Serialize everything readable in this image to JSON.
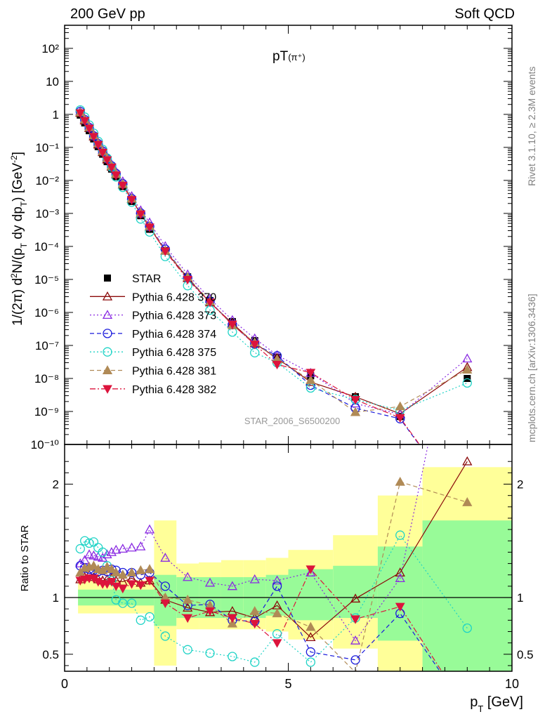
{
  "header": {
    "left": "200 GeV pp",
    "right": "Soft QCD"
  },
  "side_text": {
    "rivet": "Rivet 3.1.10, ≥ 2.3M events",
    "mcplots": "mcplots.cern.ch [arXiv:1306.3436]"
  },
  "main_plot": {
    "title_base": "pT",
    "title_sub": "(π⁺)",
    "watermark": "STAR_2006_S6500200",
    "ylabel": "1/(2π) d²N/(p_T dy dp_T) [GeV⁻²]",
    "ylim": [
      1e-10,
      500
    ],
    "yticks": [
      {
        "v": 1e-10,
        "l": "10⁻¹⁰"
      },
      {
        "v": 1e-09,
        "l": "10⁻⁹"
      },
      {
        "v": 1e-08,
        "l": "10⁻⁸"
      },
      {
        "v": 1e-07,
        "l": "10⁻⁷"
      },
      {
        "v": 1e-06,
        "l": "10⁻⁶"
      },
      {
        "v": 1e-05,
        "l": "10⁻⁵"
      },
      {
        "v": 0.0001,
        "l": "10⁻⁴"
      },
      {
        "v": 0.001,
        "l": "10⁻³"
      },
      {
        "v": 0.01,
        "l": "10⁻²"
      },
      {
        "v": 0.1,
        "l": "10⁻¹"
      },
      {
        "v": 1,
        "l": "1"
      },
      {
        "v": 10,
        "l": "10"
      },
      {
        "v": 100,
        "l": "10²"
      }
    ]
  },
  "ratio_plot": {
    "ylabel": "Ratio to STAR",
    "ylim": [
      0.35,
      2.35
    ],
    "yticks": [
      {
        "v": 0.5,
        "l": "0.5"
      },
      {
        "v": 1,
        "l": "1"
      },
      {
        "v": 2,
        "l": "2"
      }
    ]
  },
  "xaxis": {
    "label": "p_T [GeV]",
    "xlim": [
      0,
      10
    ],
    "ticks": [
      {
        "v": 0,
        "l": "0"
      },
      {
        "v": 5,
        "l": "5"
      },
      {
        "v": 10,
        "l": "10"
      }
    ]
  },
  "chart_data": {
    "type": "scatter",
    "x": [
      0.35,
      0.45,
      0.55,
      0.65,
      0.75,
      0.85,
      0.95,
      1.05,
      1.15,
      1.3,
      1.5,
      1.7,
      1.9,
      2.25,
      2.75,
      3.25,
      3.75,
      4.25,
      4.75,
      5.5,
      6.5,
      7.5,
      9.0
    ],
    "series": [
      {
        "name": "STAR",
        "color": "#000000",
        "marker": "square",
        "line": "none",
        "values": [
          0.95,
          0.55,
          0.32,
          0.18,
          0.105,
          0.062,
          0.037,
          0.022,
          0.013,
          0.0065,
          0.0023,
          0.00085,
          0.00033,
          7.5e-05,
          1.2e-05,
          2.3e-06,
          5.3e-07,
          1.4e-07,
          4.4e-08,
          1.2e-08,
          2.8e-09,
          7e-10,
          1e-08
        ]
      },
      {
        "name": "Pythia 6.428 370",
        "color": "#8b0a0a",
        "marker": "tri-up-open",
        "line": "solid",
        "ratio": [
          1.16,
          1.18,
          1.2,
          1.18,
          1.16,
          1.15,
          1.16,
          1.17,
          1.15,
          1.14,
          1.17,
          1.13,
          1.15,
          0.98,
          0.91,
          0.87,
          0.88,
          0.82,
          0.93,
          0.65,
          0.99,
          1.22,
          2.2
        ]
      },
      {
        "name": "Pythia 6.428 373",
        "color": "#8a2be2",
        "marker": "tri-up-open",
        "line": "dotted",
        "ratio": [
          1.3,
          1.33,
          1.38,
          1.37,
          1.36,
          1.35,
          1.38,
          1.4,
          1.42,
          1.43,
          1.44,
          1.45,
          1.6,
          1.35,
          1.18,
          1.13,
          1.1,
          1.16,
          1.15,
          1.22,
          0.62,
          1.17,
          4.0
        ]
      },
      {
        "name": "Pythia 6.428 374",
        "color": "#1a1adc",
        "marker": "circle-open",
        "line": "dashed",
        "ratio": [
          1.28,
          1.26,
          1.25,
          1.24,
          1.23,
          1.24,
          1.23,
          1.25,
          1.24,
          1.22,
          1.22,
          1.2,
          1.22,
          1.1,
          0.93,
          0.94,
          0.8,
          0.79,
          1.1,
          0.52,
          0.45,
          0.86,
          0.0
        ]
      },
      {
        "name": "Pythia 6.428 375",
        "color": "#1ed3c6",
        "marker": "circle-open",
        "line": "dotted",
        "ratio": [
          1.43,
          1.5,
          1.48,
          1.49,
          1.44,
          1.4,
          1.28,
          1.15,
          0.98,
          0.95,
          0.95,
          0.8,
          0.83,
          0.66,
          0.54,
          0.51,
          0.48,
          0.43,
          0.68,
          0.43,
          0.82,
          1.55,
          0.73
        ]
      },
      {
        "name": "Pythia 6.428 381",
        "color": "#b08a56",
        "marker": "tri-up-filled",
        "line": "dashed",
        "ratio": [
          1.22,
          1.26,
          1.27,
          1.28,
          1.25,
          1.24,
          1.27,
          1.25,
          1.22,
          1.2,
          1.22,
          1.24,
          1.25,
          1.0,
          0.98,
          0.93,
          0.77,
          0.88,
          0.86,
          0.74,
          0.34,
          2.02,
          1.84
        ]
      },
      {
        "name": "Pythia 6.428 382",
        "color": "#dc143c",
        "marker": "tri-down-filled",
        "line": "dashdot",
        "ratio": [
          1.15,
          1.16,
          1.17,
          1.17,
          1.14,
          1.12,
          1.12,
          1.14,
          1.1,
          1.08,
          1.12,
          1.11,
          1.15,
          0.95,
          0.82,
          0.88,
          0.82,
          0.77,
          0.6,
          1.25,
          0.81,
          0.92,
          0.0
        ]
      }
    ],
    "bands": {
      "edges": [
        0.3,
        2.0,
        2.5,
        3.0,
        3.5,
        4.0,
        4.5,
        5.0,
        6.0,
        7.0,
        8.0,
        10.0
      ],
      "green": [
        [
          0.93,
          1.07
        ],
        [
          0.75,
          1.2
        ],
        [
          0.82,
          1.18
        ],
        [
          0.82,
          1.18
        ],
        [
          0.82,
          1.18
        ],
        [
          0.82,
          1.18
        ],
        [
          0.84,
          1.2
        ],
        [
          0.8,
          1.25
        ],
        [
          0.82,
          1.28
        ],
        [
          0.62,
          1.45
        ],
        [
          0.35,
          1.68
        ]
      ],
      "yellow": [
        [
          0.86,
          1.15
        ],
        [
          0.4,
          1.68
        ],
        [
          0.72,
          1.3
        ],
        [
          0.72,
          1.31
        ],
        [
          0.72,
          1.33
        ],
        [
          0.72,
          1.33
        ],
        [
          0.7,
          1.35
        ],
        [
          0.63,
          1.42
        ],
        [
          0.55,
          1.55
        ],
        [
          0.35,
          1.9
        ],
        [
          0.35,
          2.15
        ]
      ]
    }
  }
}
